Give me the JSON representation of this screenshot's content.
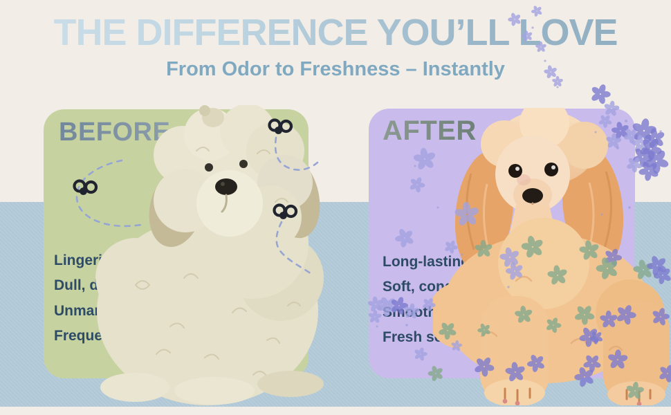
{
  "page": {
    "title": "THE DIFFERENCE YOU’LL LOVE",
    "subtitle": "From Odor to Freshness – Instantly"
  },
  "cards": {
    "before": {
      "label": "BEFORE",
      "items": [
        "Lingering pet odors",
        "Dull, dry coat.",
        "Unmanageable fur",
        "Frequent bathing needed"
      ]
    },
    "after": {
      "label": "AFTER",
      "items": [
        "Long-lasting fresh fragrance",
        "Soft, conditioned coat",
        "Smooth, tangle-free fur",
        "Fresh scent that lasts all day"
      ]
    }
  },
  "icons": {
    "fly": "fly-icon",
    "trail": "dashed-flight-trail",
    "flower": "flower-doodle",
    "before_photo": "scruffy-cream-dog-photo",
    "after_photo": "groomed-apricot-poodle-photo"
  },
  "colors": {
    "cream_bg": "#f2eee7",
    "sky_band": "#b3cad8",
    "green_card": "#c7d2a1",
    "purple_card": "#c9bbec",
    "headline_light": "#cde0ea",
    "headline_dark": "#8fadc0",
    "subtitle": "#7fa8c1",
    "before_label": "#7b8fa1",
    "after_label": "#83938a",
    "bullet_text": "#2e4b66",
    "fly": "#20242e",
    "trail": "#96a6d4",
    "flower_purple": "#7d7bd0",
    "flower_light_purple": "#a3a3e2",
    "flower_green": "#85aa8d"
  }
}
